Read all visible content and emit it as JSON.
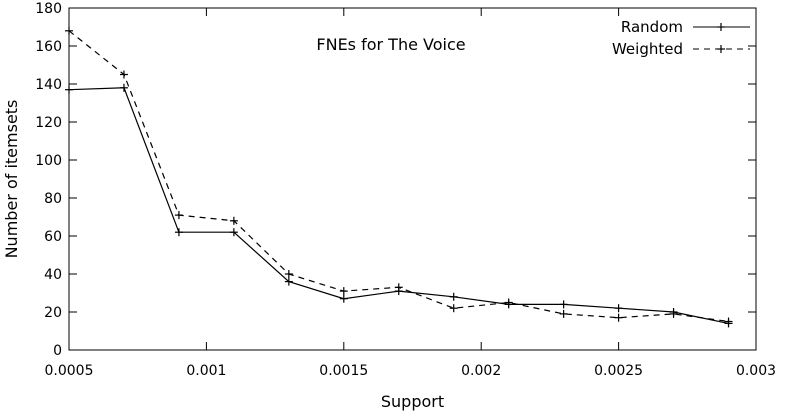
{
  "chart_data": {
    "type": "line",
    "title": "FNEs for The Voice",
    "xlabel": "Support",
    "ylabel": "Number of itemsets",
    "xlim": [
      0.0005,
      0.003
    ],
    "ylim": [
      0,
      180
    ],
    "xticks": [
      0.0005,
      0.001,
      0.0015,
      0.002,
      0.0025,
      0.003
    ],
    "xtick_labels": [
      "0.0005",
      "0.001",
      "0.0015",
      "0.002",
      "0.0025",
      "0.003"
    ],
    "yticks": [
      0,
      20,
      40,
      60,
      80,
      100,
      120,
      140,
      160,
      180
    ],
    "ytick_labels": [
      "0",
      "20",
      "40",
      "60",
      "80",
      "100",
      "120",
      "140",
      "160",
      "180"
    ],
    "grid": false,
    "legend_position": "top-right",
    "series": [
      {
        "name": "Random",
        "style": "solid",
        "x": [
          0.0005,
          0.0007,
          0.0009,
          0.0011,
          0.0013,
          0.0015,
          0.0017,
          0.0019,
          0.0021,
          0.0023,
          0.0025,
          0.0027,
          0.0029
        ],
        "y": [
          137,
          138,
          62,
          62,
          36,
          27,
          31,
          28,
          24,
          24,
          22,
          20,
          14
        ]
      },
      {
        "name": "Weighted",
        "style": "dashed",
        "x": [
          0.0005,
          0.0007,
          0.0009,
          0.0011,
          0.0013,
          0.0015,
          0.0017,
          0.0019,
          0.0021,
          0.0023,
          0.0025,
          0.0027,
          0.0029
        ],
        "y": [
          168,
          145,
          71,
          68,
          40,
          31,
          33,
          22,
          25,
          19,
          17,
          19,
          15
        ]
      }
    ]
  }
}
